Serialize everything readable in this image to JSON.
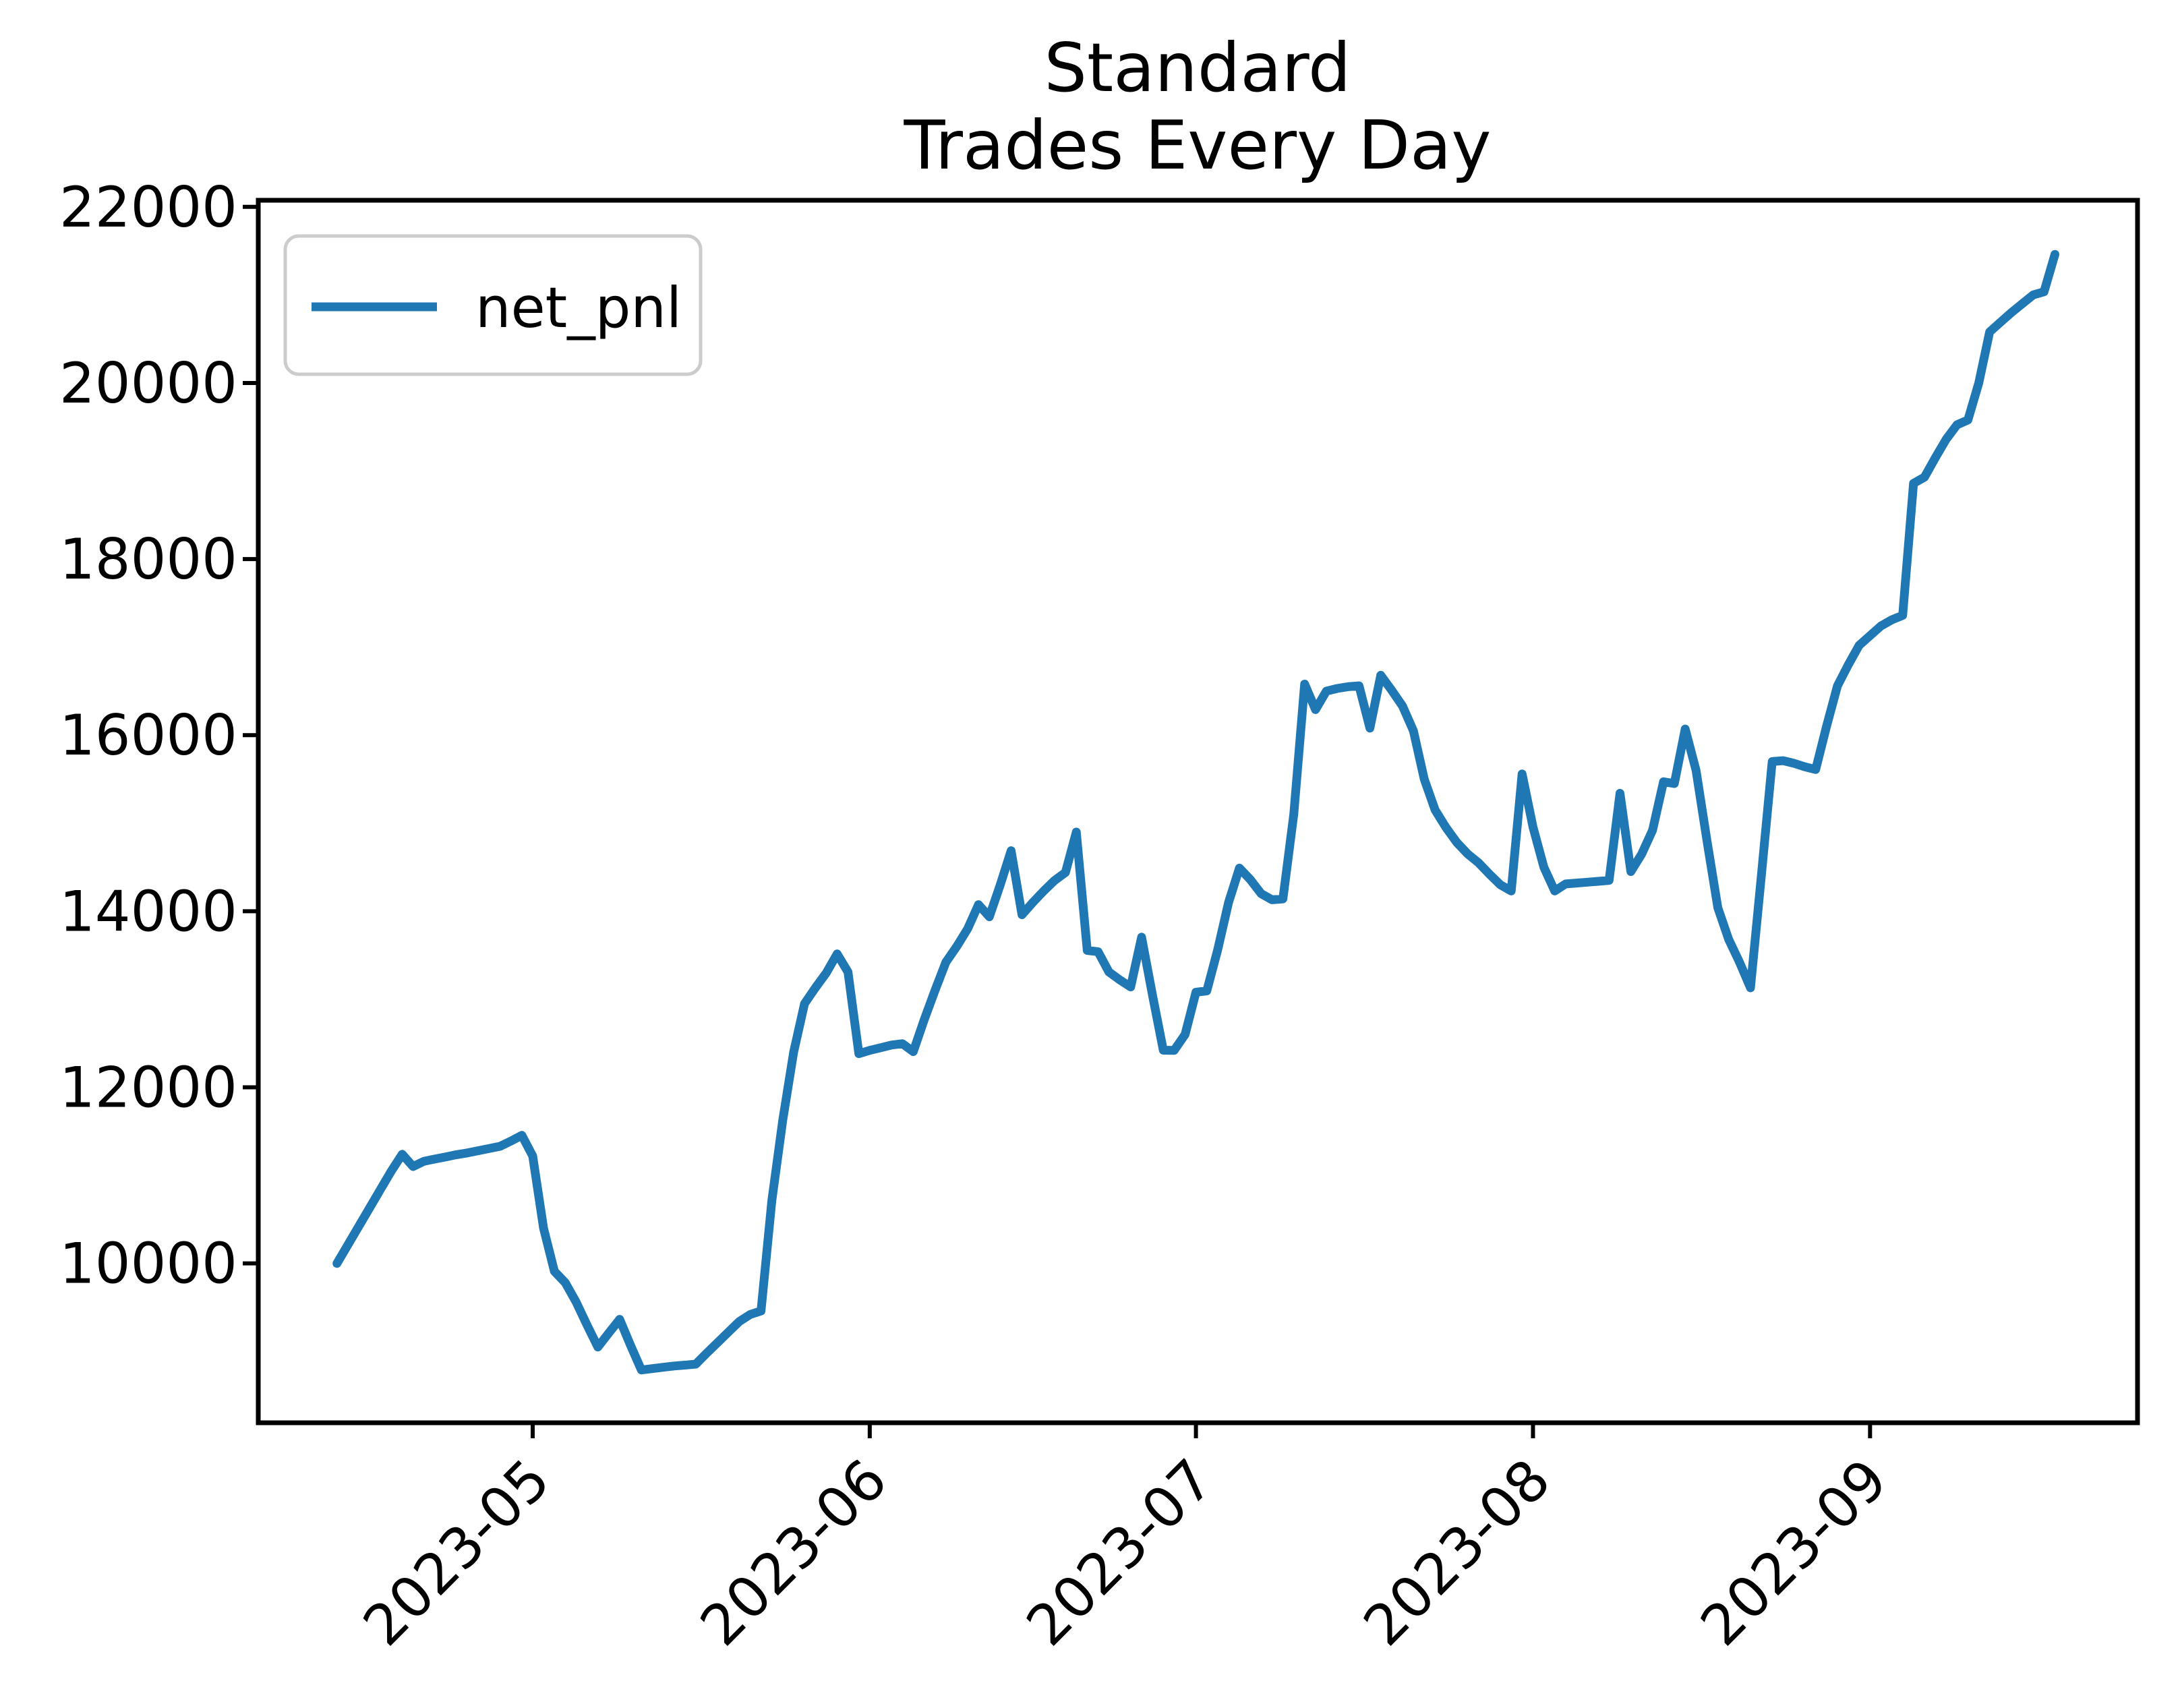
{
  "title": {
    "line1": "Standard",
    "line2": "Trades Every Day"
  },
  "legend": {
    "label": "net_pnl",
    "position": "upper-left"
  },
  "colors": {
    "line": "#1f77b4",
    "text": "#000000",
    "legend_border": "#cccccc",
    "spine": "#000000",
    "background": "#ffffff"
  },
  "chart_data": {
    "type": "line",
    "title": "Standard\nTrades Every Day",
    "xlabel": "",
    "ylabel": "",
    "grid": false,
    "legend_entries": [
      "net_pnl"
    ],
    "legend_position": "upper-left",
    "x_tick_labels": [
      "2023-05",
      "2023-06",
      "2023-07",
      "2023-08",
      "2023-09"
    ],
    "x_tick_day_offsets": [
      18,
      49,
      79,
      110,
      141
    ],
    "y_ticks": [
      10000,
      12000,
      14000,
      16000,
      18000,
      20000,
      22000
    ],
    "y_tick_labels": [
      "10000",
      "12000",
      "14000",
      "16000",
      "18000",
      "20000",
      "22000"
    ],
    "ylim": [
      8190,
      22075
    ],
    "xlim_days": [
      -7.24,
      165.6
    ],
    "series": [
      {
        "name": "net_pnl",
        "start_date": "2023-04-13",
        "end_date": "2023-09-18",
        "freq": "daily",
        "values": [
          10000,
          10210,
          10420,
          10630,
          10840,
          11050,
          11240,
          11100,
          11160,
          11185,
          11210,
          11235,
          11255,
          11280,
          11305,
          11330,
          11390,
          11455,
          11220,
          10400,
          9910,
          9780,
          9560,
          9300,
          9050,
          9210,
          9365,
          9070,
          8790,
          8805,
          8820,
          8835,
          8845,
          8856,
          8980,
          9100,
          9220,
          9340,
          9420,
          9460,
          10715,
          11630,
          12400,
          12950,
          13130,
          13300,
          13515,
          13310,
          12382,
          12420,
          12450,
          12480,
          12496,
          12405,
          12765,
          13100,
          13420,
          13600,
          13800,
          14075,
          13937,
          14300,
          14687,
          13960,
          14100,
          14230,
          14350,
          14440,
          14900,
          13555,
          13540,
          13310,
          13220,
          13140,
          13706,
          13050,
          12421,
          12420,
          12600,
          13080,
          13095,
          13560,
          14100,
          14490,
          14360,
          14200,
          14130,
          14140,
          15100,
          16580,
          16290,
          16500,
          16530,
          16550,
          16560,
          16080,
          16680,
          16510,
          16330,
          16050,
          15500,
          15150,
          14950,
          14780,
          14650,
          14550,
          14420,
          14300,
          14230,
          15560,
          14955,
          14500,
          14230,
          14310,
          14320,
          14330,
          14340,
          14350,
          15340,
          14450,
          14650,
          14920,
          15470,
          15450,
          16070,
          15600,
          14800,
          14040,
          13680,
          13420,
          13130,
          14400,
          15700,
          15710,
          15680,
          15640,
          15610,
          16100,
          16560,
          16800,
          17020,
          17130,
          17240,
          17310,
          17360,
          18860,
          18930,
          19150,
          19360,
          19525,
          19580,
          20000,
          20580,
          20690,
          20800,
          20900,
          21000,
          21035,
          21460
        ]
      }
    ]
  }
}
